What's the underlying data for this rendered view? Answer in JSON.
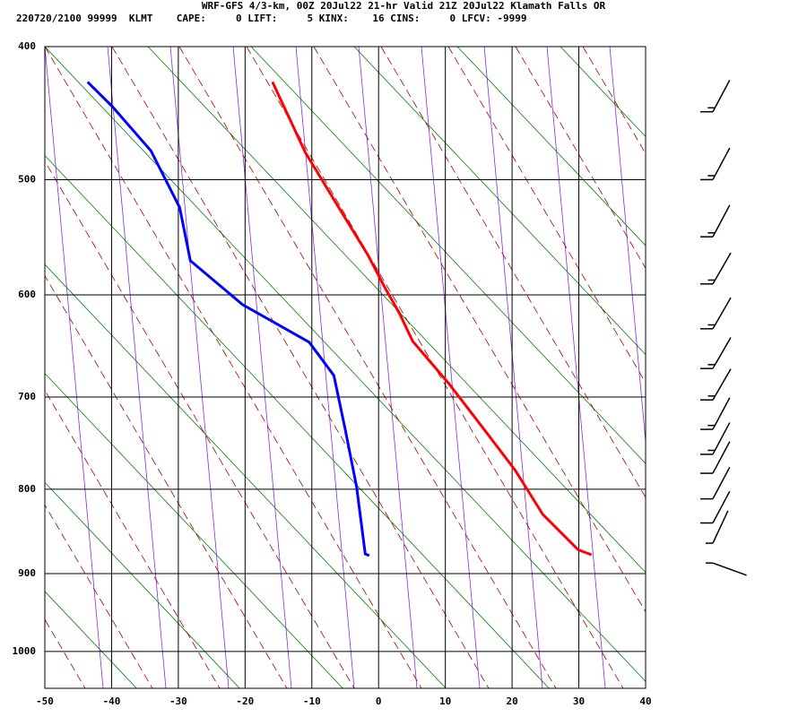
{
  "chart_data": {
    "type": "skewt",
    "title": "WRF-GFS 4/3-km, 00Z 20Jul22 21-hr Valid 21Z 20Jul22 Klamath Falls OR",
    "subtitle": "220720/2100 99999  KLMT    CAPE:     0 LIFT:     5 KINX:    16 CINS:     0 LFCV: -9999",
    "xlim": [
      -50,
      40
    ],
    "xticks": [
      -50,
      -40,
      -30,
      -20,
      -10,
      0,
      10,
      20,
      30,
      40
    ],
    "ylim": [
      1050,
      400
    ],
    "yticks": [
      400,
      500,
      600,
      700,
      800,
      900,
      1000
    ],
    "yscale": "poisson",
    "grid": true,
    "series": [
      {
        "color": "#ff0000",
        "x": [
          -15.9,
          -11.0,
          -6.3,
          -1.6,
          1.0,
          3.1,
          5.1,
          10.5,
          15.8,
          20.5,
          24.6,
          27.9,
          29.9,
          31.9
        ],
        "y": [
          425,
          478,
          520,
          564,
          594,
          617,
          644,
          686,
          734,
          779,
          829,
          855,
          871,
          877
        ]
      },
      {
        "color": "#0000ff",
        "x": [
          -43.6,
          -39.9,
          -34.1,
          -29.8,
          -28.2,
          -20.4,
          -10.4,
          -6.7,
          -5.0,
          -3.3,
          -2.0,
          -1.4
        ],
        "y": [
          425,
          443,
          477,
          523,
          569,
          609,
          645,
          678,
          734,
          797,
          876,
          878
        ]
      }
    ],
    "winds": {
      "p": [
        447,
        500,
        548,
        590,
        632,
        671,
        703,
        734,
        761,
        782,
        811,
        839,
        863,
        887
      ],
      "direction": [
        28,
        28,
        28,
        30,
        30,
        30,
        30,
        28,
        28,
        28,
        28,
        28,
        25,
        110
      ],
      "speed": [
        15,
        15,
        15,
        15,
        15,
        15,
        15,
        15,
        15,
        10,
        10,
        10,
        5,
        5
      ]
    }
  }
}
